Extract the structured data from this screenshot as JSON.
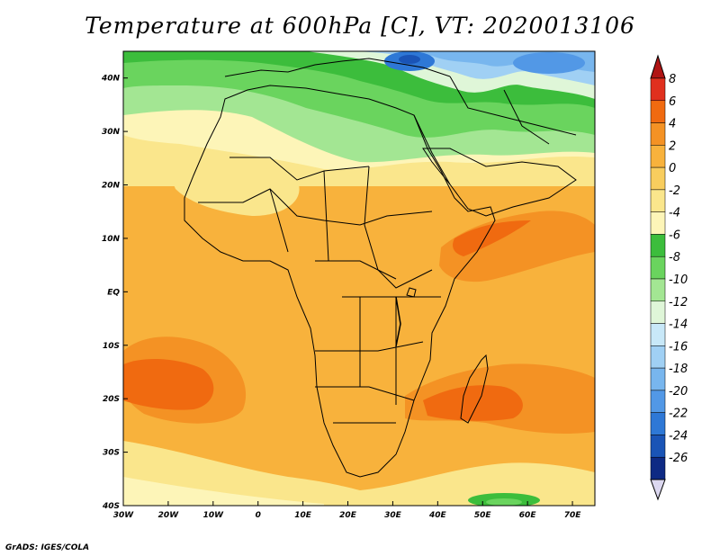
{
  "title": "Temperature at 600hPa [C], VT: 2020013106",
  "credit": "GrADS: IGES/COLA",
  "map": {
    "lon_range": [
      -30,
      75
    ],
    "lat_range": [
      -40,
      45
    ],
    "lat_ticks": [
      {
        "value": 40,
        "label": "40N"
      },
      {
        "value": 30,
        "label": "30N"
      },
      {
        "value": 20,
        "label": "20N"
      },
      {
        "value": 10,
        "label": "10N"
      },
      {
        "value": 0,
        "label": "EQ"
      },
      {
        "value": -10,
        "label": "10S"
      },
      {
        "value": -20,
        "label": "20S"
      },
      {
        "value": -30,
        "label": "30S"
      },
      {
        "value": -40,
        "label": "40S"
      }
    ],
    "lon_ticks": [
      {
        "value": -30,
        "label": "30W"
      },
      {
        "value": -20,
        "label": "20W"
      },
      {
        "value": -10,
        "label": "10W"
      },
      {
        "value": 0,
        "label": "0"
      },
      {
        "value": 10,
        "label": "10E"
      },
      {
        "value": 20,
        "label": "20E"
      },
      {
        "value": 30,
        "label": "30E"
      },
      {
        "value": 40,
        "label": "40E"
      },
      {
        "value": 50,
        "label": "50E"
      },
      {
        "value": 60,
        "label": "60E"
      },
      {
        "value": 70,
        "label": "70E"
      }
    ]
  },
  "colorbar": {
    "levels": [
      "8",
      "6",
      "4",
      "2",
      "0",
      "-2",
      "-4",
      "-6",
      "-8",
      "-10",
      "-12",
      "-14",
      "-16",
      "-18",
      "-20",
      "-22",
      "-24",
      "-26"
    ],
    "colors": [
      "#e0301e",
      "#f06a10",
      "#f49224",
      "#f8b23c",
      "#f8cd5e",
      "#fae68c",
      "#fdf5b8",
      "#3cbd3c",
      "#6ad45e",
      "#a3e693",
      "#dff6d8",
      "#c8e8f8",
      "#a0d0f4",
      "#78b6ee",
      "#5298e6",
      "#2e78d6",
      "#1a54b6",
      "#0e2a84"
    ],
    "top_triangle": "#b01414",
    "bottom_triangle": "#dcd8f0"
  }
}
